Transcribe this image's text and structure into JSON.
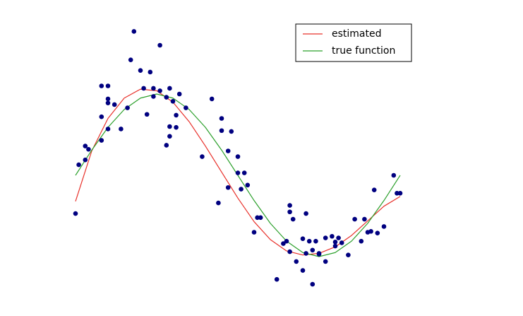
{
  "chart_data": {
    "type": "scatter",
    "xlim": [
      -0.2,
      1.2
    ],
    "ylim": [
      -1.6,
      2.0
    ],
    "legend": "upper right",
    "x": [
      0,
      0.05,
      0.1,
      0.15,
      0.2,
      0.25,
      0.3,
      0.35,
      0.4,
      0.45,
      0.5,
      0.55,
      0.6,
      0.65,
      0.7,
      0.75,
      0.8,
      0.85,
      0.9,
      0.95,
      1.0
    ],
    "series": [
      {
        "name": "estimated",
        "color": "#e8302a",
        "values": [
          -0.32,
          0.3,
          0.7,
          0.95,
          1.06,
          1.04,
          0.9,
          0.66,
          0.36,
          0.04,
          -0.28,
          -0.57,
          -0.79,
          -0.93,
          -0.98,
          -0.96,
          -0.88,
          -0.74,
          -0.56,
          -0.38,
          -0.26
        ]
      },
      {
        "name": "true function",
        "color": "#2ca02c",
        "values": [
          0,
          0.31,
          0.59,
          0.81,
          0.95,
          1,
          0.95,
          0.81,
          0.59,
          0.31,
          0,
          -0.31,
          -0.59,
          -0.81,
          -0.95,
          -1,
          -0.95,
          -0.81,
          -0.59,
          -0.31,
          0
        ]
      }
    ],
    "points": {
      "color": "#000080",
      "x": [
        0.0,
        0.01,
        0.03,
        0.03,
        0.04,
        0.08,
        0.08,
        0.08,
        0.1,
        0.1,
        0.1,
        0.1,
        0.12,
        0.14,
        0.16,
        0.17,
        0.18,
        0.2,
        0.21,
        0.22,
        0.23,
        0.24,
        0.24,
        0.26,
        0.26,
        0.28,
        0.29,
        0.28,
        0.29,
        0.29,
        0.3,
        0.31,
        0.31,
        0.32,
        0.34,
        0.39,
        0.42,
        0.44,
        0.45,
        0.45,
        0.47,
        0.47,
        0.48,
        0.5,
        0.5,
        0.51,
        0.52,
        0.53,
        0.55,
        0.56,
        0.57,
        0.62,
        0.64,
        0.65,
        0.66,
        0.66,
        0.66,
        0.67,
        0.68,
        0.7,
        0.7,
        0.71,
        0.71,
        0.72,
        0.73,
        0.73,
        0.74,
        0.75,
        0.75,
        0.77,
        0.77,
        0.79,
        0.8,
        0.8,
        0.81,
        0.82,
        0.84,
        0.86,
        0.88,
        0.89,
        0.9,
        0.91,
        0.92,
        0.93,
        0.95,
        0.98,
        0.99,
        1.0
      ],
      "y": [
        -0.47,
        0.13,
        0.36,
        0.19,
        0.32,
        0.72,
        0.43,
        1.1,
        1.1,
        0.94,
        0.57,
        0.89,
        0.87,
        0.57,
        0.83,
        1.42,
        1.77,
        1.29,
        1.07,
        0.75,
        1.27,
        1.07,
        0.97,
        1.6,
        1.04,
        0.96,
        1.07,
        0.37,
        0.6,
        0.48,
        0.91,
        0.74,
        0.59,
        1.0,
        0.83,
        0.23,
        0.94,
        -0.34,
        0.7,
        0.55,
        0.3,
        -0.15,
        0.54,
        0.03,
        0.23,
        -0.17,
        0.03,
        -0.12,
        -0.7,
        -0.52,
        -0.52,
        -1.28,
        -0.84,
        -0.81,
        -0.37,
        -0.45,
        -0.94,
        -0.54,
        -1.06,
        -0.78,
        -1.17,
        -0.47,
        -0.96,
        -0.81,
        -1.34,
        -0.92,
        -0.81,
        -0.96,
        -0.97,
        -1.06,
        -0.77,
        -0.75,
        -0.87,
        -0.82,
        -0.77,
        -0.83,
        -0.98,
        -0.54,
        -0.81,
        -0.54,
        -0.7,
        -0.69,
        -0.18,
        -0.71,
        -0.63,
        0.0,
        -0.22,
        -0.22
      ]
    }
  }
}
